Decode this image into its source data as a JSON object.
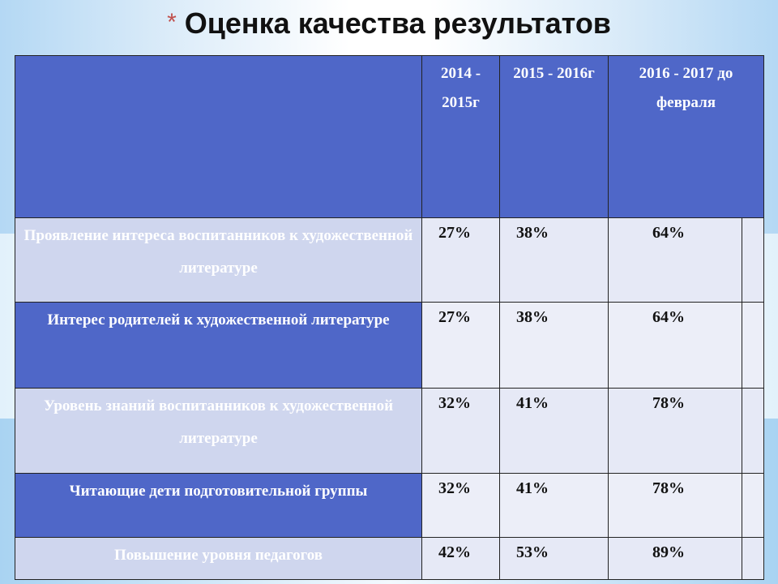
{
  "slide": {
    "title": "Оценка качества результатов",
    "bullet": "*"
  },
  "table": {
    "headers": [
      "",
      "2014 - 2015г",
      "2015 - 2016г",
      "2016 - 2017 до февраля"
    ],
    "rows": [
      {
        "label": "Проявление интереса воспитанников к художественной литературе",
        "values": [
          "27%",
          "38%",
          "64%"
        ]
      },
      {
        "label": "Интерес родителей к художественной литературе",
        "values": [
          "27%",
          "38%",
          "64%"
        ]
      },
      {
        "label": "Уровень знаний воспитанников к художественной литературе",
        "values": [
          "32%",
          "41%",
          "78%"
        ]
      },
      {
        "label": "Читающие дети подготовительной группы",
        "values": [
          "32%",
          "41%",
          "78%"
        ]
      },
      {
        "label": "Повышение уровня педагогов",
        "values": [
          "42%",
          "53%",
          "89%"
        ]
      }
    ]
  },
  "colors": {
    "header_bg": "#4f67c8",
    "light_row_label": "#cfd6ee",
    "value_cell": "#e6e9f6",
    "bullet": "#c0504d"
  }
}
